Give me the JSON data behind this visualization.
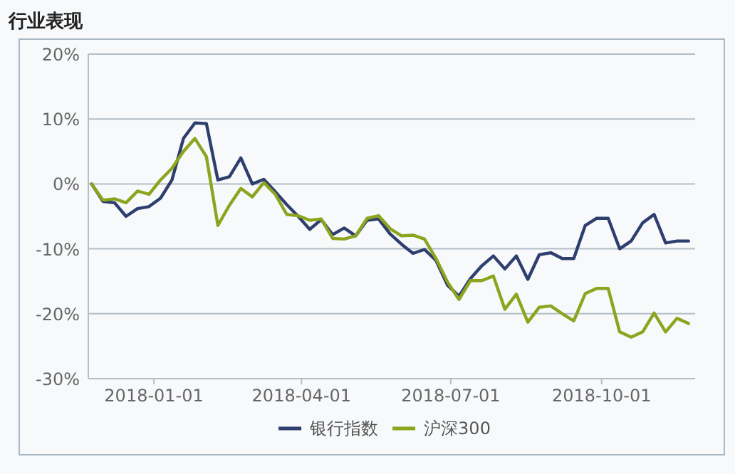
{
  "chart_data": {
    "type": "line",
    "title": "行业表现",
    "x": [
      "2017-11-24",
      "2017-12-01",
      "2017-12-08",
      "2017-12-15",
      "2017-12-22",
      "2017-12-29",
      "2018-01-05",
      "2018-01-12",
      "2018-01-19",
      "2018-01-26",
      "2018-02-02",
      "2018-02-09",
      "2018-02-16",
      "2018-02-23",
      "2018-03-02",
      "2018-03-09",
      "2018-03-16",
      "2018-03-23",
      "2018-03-30",
      "2018-04-06",
      "2018-04-13",
      "2018-04-20",
      "2018-04-27",
      "2018-05-04",
      "2018-05-11",
      "2018-05-18",
      "2018-05-25",
      "2018-06-01",
      "2018-06-08",
      "2018-06-15",
      "2018-06-22",
      "2018-06-29",
      "2018-07-06",
      "2018-07-13",
      "2018-07-20",
      "2018-07-27",
      "2018-08-03",
      "2018-08-10",
      "2018-08-17",
      "2018-08-24",
      "2018-08-31",
      "2018-09-07",
      "2018-09-14",
      "2018-09-21",
      "2018-09-28",
      "2018-10-05",
      "2018-10-12",
      "2018-10-19",
      "2018-10-26",
      "2018-11-02",
      "2018-11-09",
      "2018-11-16",
      "2018-11-23"
    ],
    "series": [
      {
        "name": "银行指数",
        "color": "#2e3f6e",
        "values": [
          0,
          -2.7,
          -2.9,
          -5.0,
          -3.8,
          -3.5,
          -2.2,
          0.6,
          7.0,
          9.4,
          9.3,
          0.6,
          1.1,
          4.0,
          0,
          0.7,
          -1.2,
          -3.2,
          -5.0,
          -7.0,
          -5.5,
          -7.8,
          -6.8,
          -8.0,
          -5.6,
          -5.4,
          -7.7,
          -9.3,
          -10.7,
          -10.1,
          -11.8,
          -15.6,
          -17.3,
          -14.6,
          -12.6,
          -11.1,
          -13.1,
          -11.1,
          -14.7,
          -10.9,
          -10.6,
          -11.5,
          -11.5,
          -6.4,
          -5.3,
          -5.3,
          -10.0,
          -8.8,
          -6.0,
          -4.7,
          -9.1,
          -8.8,
          -8.8
        ]
      },
      {
        "name": "沪深300",
        "color": "#8ca41e",
        "values": [
          0,
          -2.5,
          -2.3,
          -2.9,
          -1.1,
          -1.6,
          0.6,
          2.4,
          5.0,
          7.0,
          4.2,
          -6.4,
          -3.3,
          -0.7,
          -2.0,
          0.2,
          -1.6,
          -4.7,
          -4.9,
          -5.6,
          -5.4,
          -8.4,
          -8.5,
          -8.0,
          -5.3,
          -4.9,
          -6.9,
          -8.0,
          -7.9,
          -8.5,
          -11.5,
          -15.1,
          -17.8,
          -14.9,
          -14.9,
          -14.2,
          -19.3,
          -17.0,
          -21.3,
          -19.0,
          -18.8,
          -20.0,
          -21.1,
          -16.9,
          -16.1,
          -16.1,
          -22.8,
          -23.6,
          -22.8,
          -19.9,
          -22.8,
          -20.7,
          -21.5
        ]
      }
    ],
    "xlim": [
      "2017-11-22",
      "2018-11-27"
    ],
    "xticks": [
      {
        "value": "2018-01-01",
        "label": "2018-01-01"
      },
      {
        "value": "2018-04-01",
        "label": "2018-04-01"
      },
      {
        "value": "2018-07-01",
        "label": "2018-07-01"
      },
      {
        "value": "2018-10-01",
        "label": "2018-10-01"
      }
    ],
    "ylim": [
      -30,
      20
    ],
    "yticks": [
      {
        "value": -30,
        "label": "-30%"
      },
      {
        "value": -20,
        "label": "-20%"
      },
      {
        "value": -10,
        "label": "-10%"
      },
      {
        "value": 0,
        "label": "0%"
      },
      {
        "value": 10,
        "label": "10%"
      },
      {
        "value": 20,
        "label": "20%"
      }
    ],
    "grid": "y",
    "legend": "bottom",
    "marker": "none",
    "line_style": "solid"
  }
}
